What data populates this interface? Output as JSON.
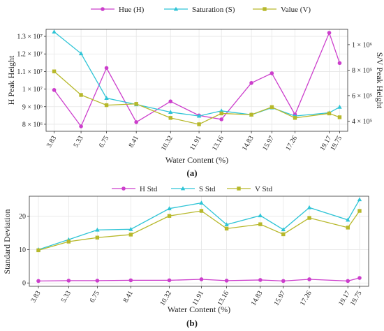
{
  "colors": {
    "hue": "#cc3ecc",
    "saturation": "#2ec4d6",
    "value": "#b7b82a"
  },
  "chart_data": [
    {
      "type": "line",
      "panel_label": "(a)",
      "x": [
        3.83,
        5.33,
        6.75,
        8.41,
        10.32,
        11.91,
        13.16,
        14.83,
        15.97,
        17.26,
        19.17,
        19.75
      ],
      "x_tick_labels": [
        "3.83",
        "5.33",
        "6.75",
        "8.41",
        "10.32",
        "11.91",
        "13.16",
        "14.83",
        "15.97",
        "17.26",
        "19.17",
        "19.75"
      ],
      "xlabel": "Water Content (%)",
      "ylabel": "H Peak Height",
      "ylabel_right": "S/V Peak Height",
      "ylim": [
        7600000,
        13400000
      ],
      "ylim_right": [
        320000,
        1120000
      ],
      "yticks": [
        {
          "v": 8000000,
          "label": "8 × 10⁶"
        },
        {
          "v": 9000000,
          "label": "9 × 10⁶"
        },
        {
          "v": 10000000,
          "label": "1 × 10⁷"
        },
        {
          "v": 11000000,
          "label": "1.1 × 10⁷"
        },
        {
          "v": 12000000,
          "label": "1.2 × 10⁷"
        },
        {
          "v": 13000000,
          "label": "1.3 × 10⁷"
        }
      ],
      "yticks_right": [
        {
          "v": 400000,
          "label": "4 × 10⁵"
        },
        {
          "v": 600000,
          "label": "6 × 10⁵"
        },
        {
          "v": 800000,
          "label": "8 × 10⁵"
        },
        {
          "v": 1000000,
          "label": "1 × 10⁶"
        }
      ],
      "series": [
        {
          "name": "Hue (H)",
          "axis": "left",
          "marker": "circle",
          "color_key": "hue",
          "values": [
            9950000,
            7880000,
            11200000,
            8120000,
            9300000,
            8500000,
            8280000,
            10350000,
            10900000,
            8550000,
            13200000,
            11480000
          ]
        },
        {
          "name": "Saturation (S)",
          "axis": "right",
          "marker": "triangle",
          "color_key": "saturation",
          "values": [
            1100000,
            930000,
            580000,
            530000,
            470000,
            440000,
            480000,
            450000,
            505000,
            440000,
            465000,
            510000
          ]
        },
        {
          "name": "Value (V)",
          "axis": "right",
          "marker": "square",
          "color_key": "value",
          "values": [
            790000,
            605000,
            525000,
            535000,
            425000,
            375000,
            460000,
            450000,
            510000,
            425000,
            460000,
            430000
          ]
        }
      ]
    },
    {
      "type": "line",
      "panel_label": "(b)",
      "x": [
        3.83,
        5.33,
        6.75,
        8.41,
        10.32,
        11.91,
        13.16,
        14.83,
        15.97,
        17.26,
        19.17,
        19.75
      ],
      "x_tick_labels": [
        "3.83",
        "5.33",
        "6.75",
        "8.41",
        "10.32",
        "11.91",
        "13.16",
        "14.83",
        "15.97",
        "17.26",
        "19.17",
        "19.75"
      ],
      "xlabel": "Water Content (%)",
      "ylabel": "Standard Deviation",
      "ylim": [
        -1,
        26
      ],
      "yticks": [
        {
          "v": 0,
          "label": "0"
        },
        {
          "v": 10,
          "label": "10"
        },
        {
          "v": 20,
          "label": "20"
        }
      ],
      "series": [
        {
          "name": "H Std",
          "marker": "circle",
          "color_key": "hue",
          "values": [
            0.6,
            0.7,
            0.7,
            0.8,
            0.8,
            1.1,
            0.7,
            0.9,
            0.6,
            1.1,
            0.6,
            1.5
          ]
        },
        {
          "name": "S Std",
          "marker": "triangle",
          "color_key": "saturation",
          "values": [
            10.0,
            13.0,
            15.9,
            16.1,
            22.3,
            24.0,
            17.5,
            20.2,
            16.0,
            22.6,
            18.9,
            25.0
          ]
        },
        {
          "name": "V Std",
          "marker": "square",
          "color_key": "value",
          "values": [
            9.8,
            12.4,
            13.6,
            14.5,
            20.1,
            21.6,
            16.3,
            17.6,
            14.6,
            19.5,
            16.6,
            21.6
          ]
        }
      ]
    }
  ]
}
